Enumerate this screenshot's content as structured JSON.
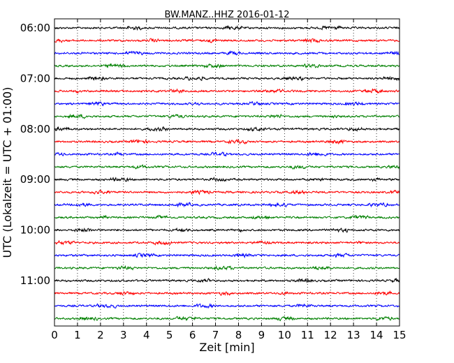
{
  "chart_data": {
    "type": "line",
    "title": "BW.MANZ..HHZ 2016-01-12",
    "xlabel": "Zeit  [min]",
    "ylabel": "UTC (Lokalzeit = UTC + 01:00)",
    "xlim": [
      0,
      15
    ],
    "x_ticks": [
      "0",
      "1",
      "2",
      "3",
      "4",
      "5",
      "6",
      "7",
      "8",
      "9",
      "10",
      "11",
      "12",
      "13",
      "14",
      "15"
    ],
    "y_ticks": [
      {
        "label": "06:00",
        "row": 0
      },
      {
        "label": "07:00",
        "row": 4
      },
      {
        "label": "08:00",
        "row": 8
      },
      {
        "label": "09:00",
        "row": 12
      },
      {
        "label": "10:00",
        "row": 16
      },
      {
        "label": "11:00",
        "row": 20
      }
    ],
    "grid": "vertical-dotted",
    "row_count": 24,
    "row_minutes": 15,
    "start_time": "06:00",
    "colors": [
      "#000000",
      "#ff0000",
      "#0000ff",
      "#008000"
    ]
  }
}
